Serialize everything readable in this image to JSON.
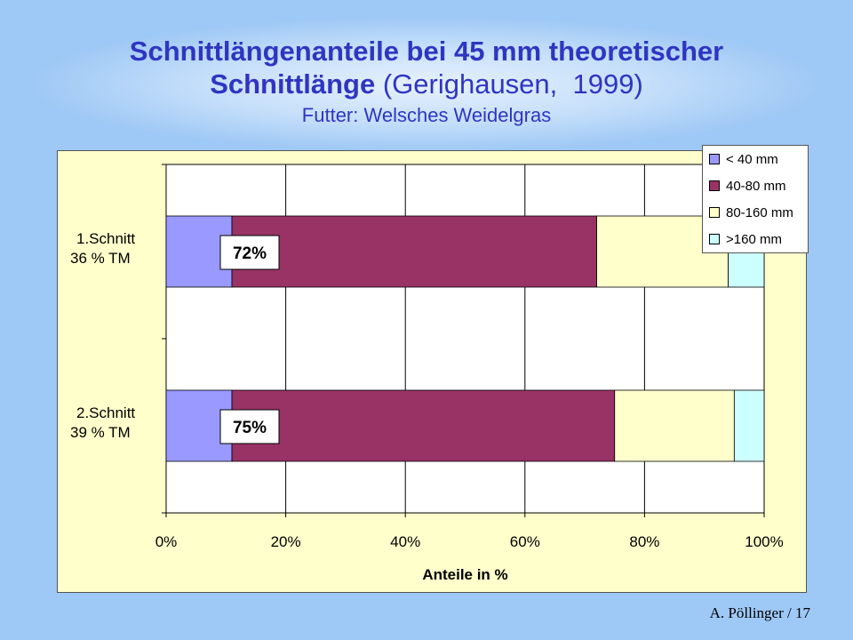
{
  "title": {
    "line1": "Schnittlängenanteile bei 45 mm theoretischer",
    "line2_bold": "Schnittlänge",
    "line2_rest": " (Gerighausen,  1999)",
    "subtitle": "Futter: Welsches Weidelgras"
  },
  "footer": "A. Pöllinger / 17",
  "chart_data": {
    "type": "bar",
    "orientation": "horizontal",
    "stacked": "percent",
    "categories": [
      "1.Schnitt 36 % TM",
      "2.Schnitt 39 % TM"
    ],
    "category_lines": [
      [
        "1.Schnitt",
        "36 % TM"
      ],
      [
        "2.Schnitt",
        "39 % TM"
      ]
    ],
    "series": [
      {
        "name": "< 40 mm",
        "color": "#9999ff",
        "values": [
          11,
          11
        ]
      },
      {
        "name": "40-80 mm",
        "color": "#993366",
        "values": [
          61,
          64
        ]
      },
      {
        "name": "80-160 mm",
        "color": "#ffffcc",
        "values": [
          22,
          20
        ]
      },
      {
        "name": ">160 mm",
        "color": "#ccffff",
        "values": [
          6,
          5
        ]
      }
    ],
    "data_labels": [
      "72%",
      "75%"
    ],
    "xlabel": "Anteile in %",
    "xlim": [
      0,
      100
    ],
    "xticks": [
      "0%",
      "20%",
      "40%",
      "60%",
      "80%",
      "100%"
    ],
    "grid": true,
    "legend_position": "top-right",
    "plot_background": "#ffffff"
  }
}
